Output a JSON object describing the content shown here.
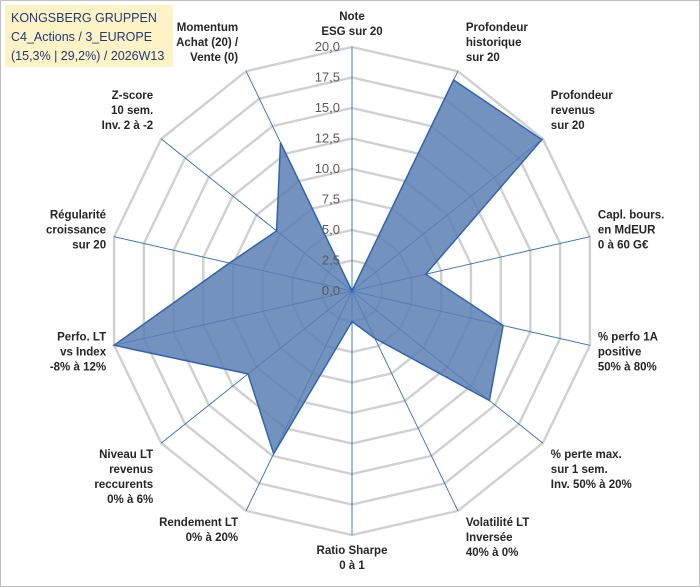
{
  "chart_data": {
    "type": "radar",
    "title_lines": [
      "KONGSBERG GRUPPEN",
      "C4_Actions / 3_EUROPE",
      "(15,3% | 29,2%) / 2026W13"
    ],
    "rlim": [
      0,
      20
    ],
    "r_ticks": [
      "0,0",
      "2,5",
      "5,0",
      "7,5",
      "10,0",
      "12,5",
      "15,0",
      "17,5",
      "20,0"
    ],
    "axes": [
      {
        "label": [
          "Note",
          "ESG sur 20"
        ],
        "value": 0
      },
      {
        "label": [
          "Profondeur",
          "historique",
          "sur 20"
        ],
        "value": 19.2
      },
      {
        "label": [
          "Profondeur",
          "revenus",
          "sur 20"
        ],
        "value": 19.9
      },
      {
        "label": [
          "Capl. bours.",
          "en MdEUR",
          "0 à 60 G€"
        ],
        "value": 6.2
      },
      {
        "label": [
          "% perfo 1A",
          "positive",
          "50% à 80%"
        ],
        "value": 12.7
      },
      {
        "label": [
          "% perte max.",
          "sur 1 sem.",
          "Inv. 50% à 20%"
        ],
        "value": 14.4
      },
      {
        "label": [
          "Volatilité LT",
          "Inversée",
          "40% à 0%"
        ],
        "value": 4.3
      },
      {
        "label": [
          "Ratio Sharpe",
          "0 à 1"
        ],
        "value": 2.5
      },
      {
        "label": [
          "Rendement LT",
          "0% à 20%"
        ],
        "value": 14.8
      },
      {
        "label": [
          "Niveau LT",
          "revenus",
          "reccurents",
          "0% à 6%"
        ],
        "value": 10.9
      },
      {
        "label": [
          "Perfo. LT",
          "vs Index",
          "-8% à 12%"
        ],
        "value": 20.0
      },
      {
        "label": [
          "Régularité",
          "croissance",
          "sur 20"
        ],
        "value": 10.3
      },
      {
        "label": [
          "Z-score",
          "10 sem.",
          "Inv. 2 à -2"
        ],
        "value": 7.9
      },
      {
        "label": [
          "Momentum",
          "Achat (20) /",
          "Vente (0)"
        ],
        "value": 13.5
      }
    ]
  }
}
